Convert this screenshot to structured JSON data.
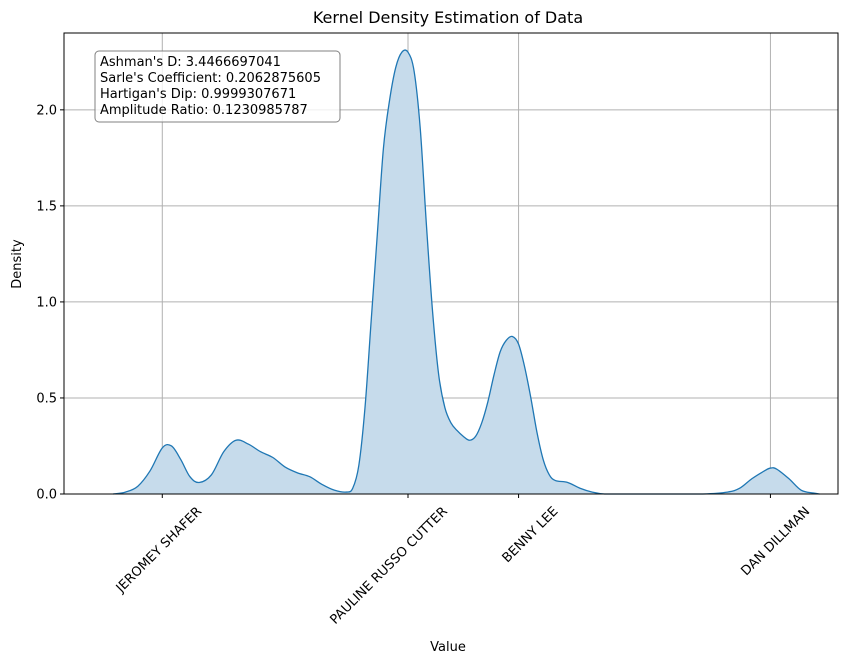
{
  "chart_data": {
    "type": "area",
    "title": "Kernel Density Estimation of Data",
    "xlabel": "Value",
    "ylabel": "Density",
    "ylim": [
      0,
      2.4
    ],
    "yticks": [
      0.0,
      0.5,
      1.0,
      1.5,
      2.0
    ],
    "ytick_labels": [
      "0.0",
      "0.5",
      "1.0",
      "1.5",
      "2.0"
    ],
    "categories": [
      "JEROMEY SHAFER",
      "PAULINE RUSSO CUTTER",
      "BENNY LEE",
      "DAN DILLMAN"
    ],
    "category_positions": [
      0,
      4,
      5.8,
      9.9
    ],
    "xlim": [
      -1.6,
      11.0
    ],
    "grid": true,
    "series": [
      {
        "color": "#1f77b4",
        "fill": "#c6dbeb",
        "x": [
          -0.8,
          -0.6,
          -0.4,
          -0.2,
          0.0,
          0.15,
          0.3,
          0.45,
          0.6,
          0.8,
          1.0,
          1.2,
          1.4,
          1.6,
          1.8,
          2.0,
          2.2,
          2.4,
          2.6,
          2.8,
          3.0,
          3.1,
          3.2,
          3.3,
          3.4,
          3.5,
          3.6,
          3.7,
          3.8,
          3.9,
          4.0,
          4.1,
          4.2,
          4.3,
          4.4,
          4.5,
          4.6,
          4.7,
          4.8,
          4.9,
          5.0,
          5.1,
          5.2,
          5.3,
          5.4,
          5.5,
          5.6,
          5.7,
          5.8,
          5.9,
          6.0,
          6.1,
          6.2,
          6.3,
          6.4,
          6.6,
          6.8,
          7.0,
          7.2,
          7.6,
          8.0,
          8.4,
          8.8,
          9.2,
          9.4,
          9.6,
          9.8,
          9.9,
          10.0,
          10.2,
          10.4,
          10.6,
          10.7
        ],
        "y": [
          0.0,
          0.01,
          0.04,
          0.12,
          0.24,
          0.25,
          0.18,
          0.09,
          0.06,
          0.1,
          0.22,
          0.28,
          0.26,
          0.22,
          0.19,
          0.14,
          0.11,
          0.09,
          0.05,
          0.02,
          0.01,
          0.03,
          0.15,
          0.45,
          0.9,
          1.35,
          1.8,
          2.05,
          2.22,
          2.3,
          2.3,
          2.2,
          1.9,
          1.4,
          0.95,
          0.62,
          0.45,
          0.37,
          0.33,
          0.3,
          0.28,
          0.3,
          0.37,
          0.48,
          0.62,
          0.74,
          0.8,
          0.82,
          0.78,
          0.66,
          0.5,
          0.32,
          0.18,
          0.1,
          0.07,
          0.06,
          0.03,
          0.01,
          0.0,
          0.0,
          0.0,
          0.0,
          0.0,
          0.01,
          0.03,
          0.08,
          0.12,
          0.135,
          0.13,
          0.08,
          0.02,
          0.005,
          0.0
        ]
      }
    ]
  },
  "stats": {
    "line1": "Ashman's D: 3.4466697041",
    "line2": "Sarle's Coefficient: 0.2062875605",
    "line3": "Hartigan's Dip: 0.9999307671",
    "line4": "Amplitude Ratio: 0.1230985787"
  }
}
